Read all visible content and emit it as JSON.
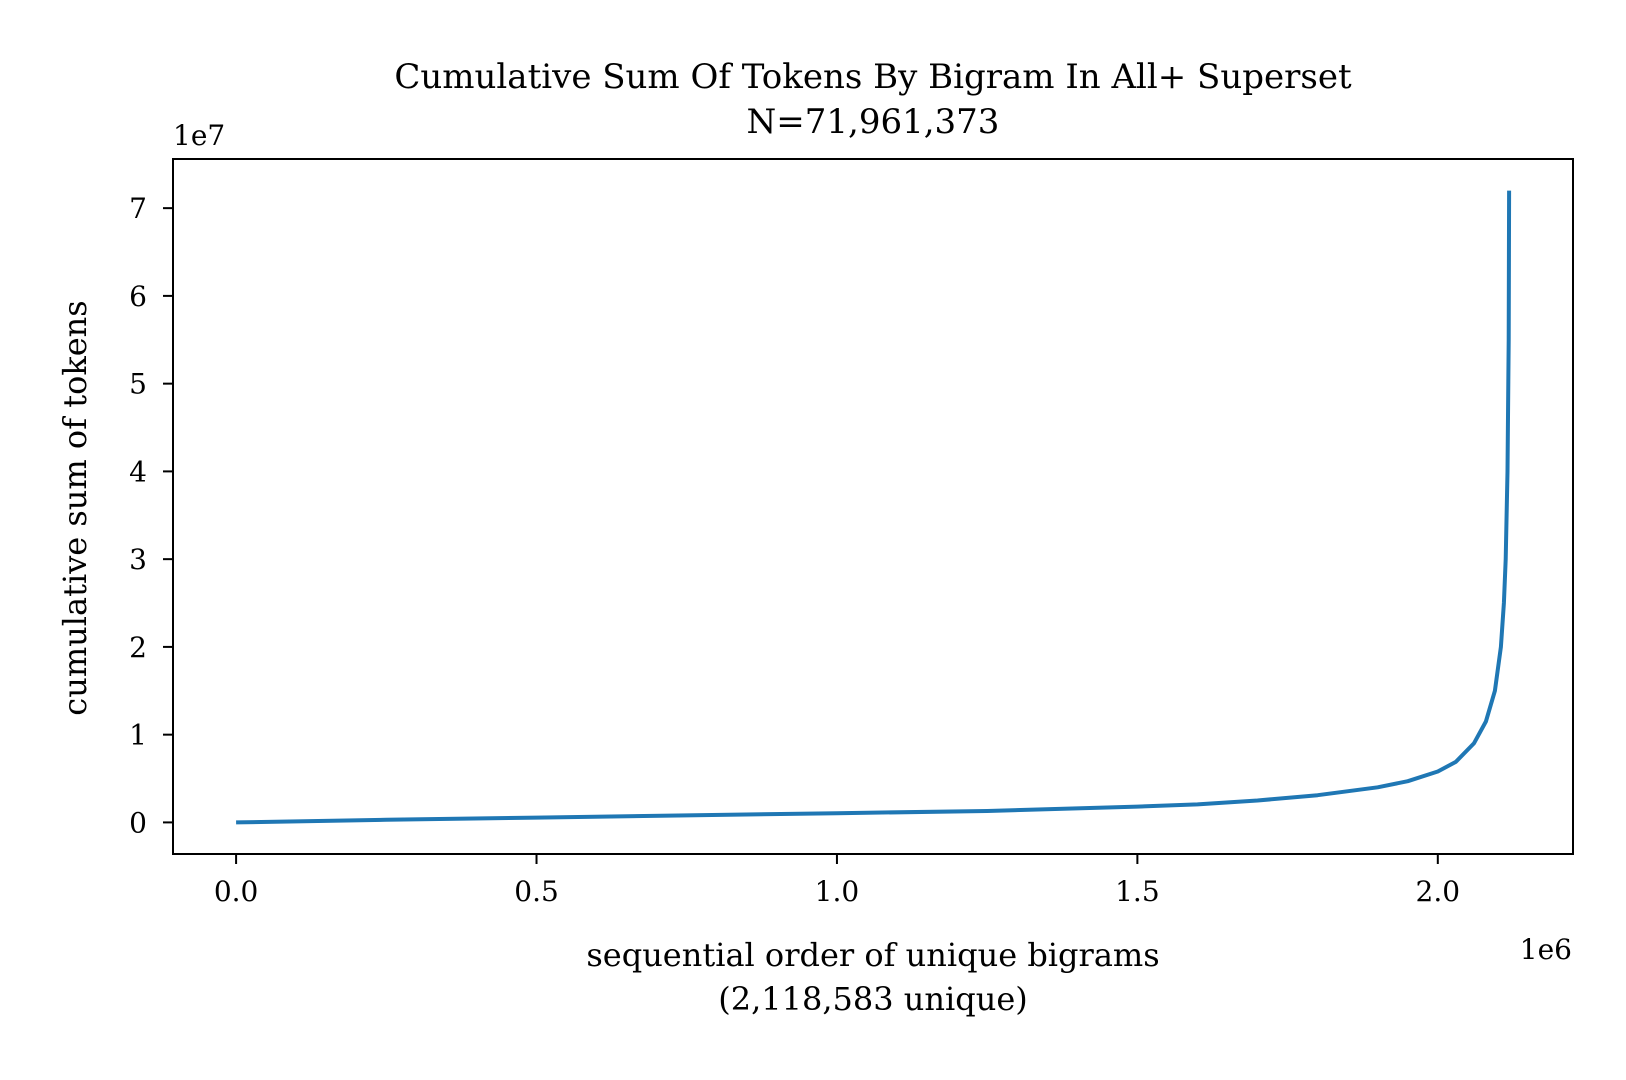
{
  "chart_data": {
    "type": "line",
    "title": "Cumulative Sum Of Tokens By Bigram In All+ Superset",
    "subtitle": "N=71,961,373",
    "xlabel": "sequential order of unique bigrams",
    "xlabel_line2": "(2,118,583 unique)",
    "ylabel": "cumulative sum of tokens",
    "x_offset_label": "1e6",
    "y_offset_label": "1e7",
    "x_scale": 1000000,
    "y_scale": 10000000,
    "xlim": [
      -105000,
      2225000
    ],
    "ylim": [
      -3600000,
      75600000
    ],
    "x_ticks": [
      0,
      500000,
      1000000,
      1500000,
      2000000
    ],
    "x_tick_labels": [
      "0.0",
      "0.5",
      "1.0",
      "1.5",
      "2.0"
    ],
    "y_ticks": [
      0,
      10000000,
      20000000,
      30000000,
      40000000,
      50000000,
      60000000,
      70000000
    ],
    "y_tick_labels": [
      "0",
      "1",
      "2",
      "3",
      "4",
      "5",
      "6",
      "7"
    ],
    "grid": false,
    "line_color": "#1f77b4",
    "series": [
      {
        "x": [
          0,
          250000,
          500000,
          750000,
          1000000,
          1250000,
          1500000,
          1600000,
          1700000,
          1800000,
          1900000,
          1950000,
          2000000,
          2030000,
          2060000,
          2080000,
          2095000,
          2105000,
          2110000,
          2113000,
          2116000,
          2118000,
          2118583
        ],
        "y": [
          0,
          300000,
          550000,
          800000,
          1050000,
          1300000,
          1800000,
          2050000,
          2500000,
          3100000,
          4000000,
          4700000,
          5800000,
          6900000,
          9000000,
          11500000,
          15000000,
          20000000,
          25000000,
          30000000,
          40000000,
          55000000,
          72000000
        ]
      }
    ]
  }
}
